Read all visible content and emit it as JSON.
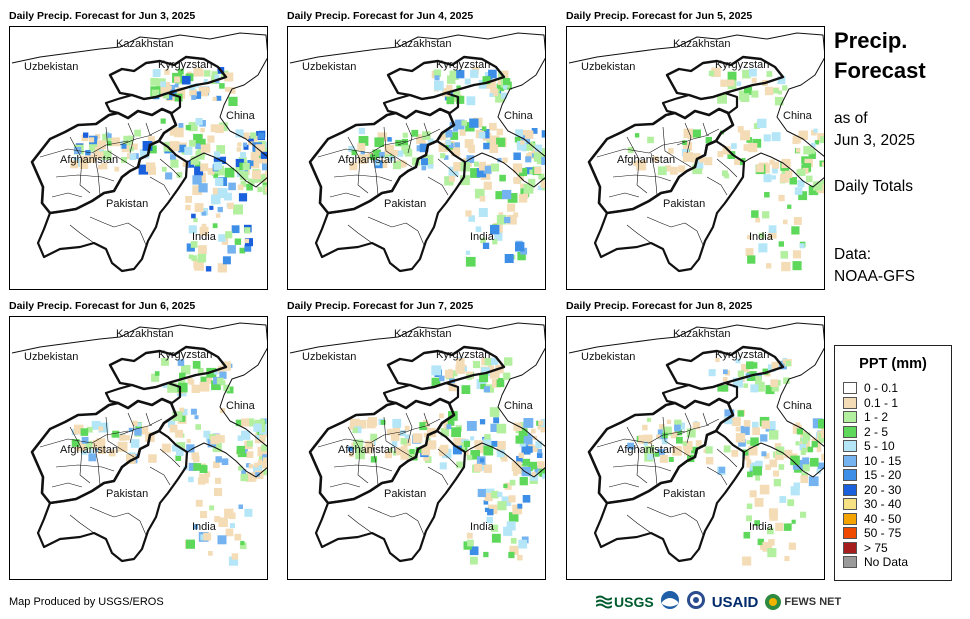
{
  "panels": [
    {
      "title": "Daily Precip. Forecast for Jun 3, 2025",
      "wet_level": 5
    },
    {
      "title": "Daily Precip. Forecast for Jun 4, 2025",
      "wet_level": 4
    },
    {
      "title": "Daily Precip. Forecast for Jun 5, 2025",
      "wet_level": 2
    },
    {
      "title": "Daily Precip. Forecast for Jun 6, 2025",
      "wet_level": 3
    },
    {
      "title": "Daily Precip. Forecast for Jun 7, 2025",
      "wet_level": 4
    },
    {
      "title": "Daily Precip. Forecast for Jun 8, 2025",
      "wet_level": 3
    }
  ],
  "country_labels": [
    "Kazakhstan",
    "Uzbekistan",
    "Kyrgyzstan",
    "China",
    "Afghanistan",
    "Pakistan",
    "India"
  ],
  "side": {
    "title_line1": "Precip.",
    "title_line2": "Forecast",
    "asof_line1": "as of",
    "asof_line2": "Jun 3, 2025",
    "totals": "Daily Totals",
    "data_line1": "Data:",
    "data_line2": "NOAA-GFS"
  },
  "legend": {
    "title": "PPT (mm)",
    "items": [
      {
        "label": "0 - 0.1",
        "color": "#ffffff"
      },
      {
        "label": "0.1 - 1",
        "color": "#f3dcb6"
      },
      {
        "label": "1 - 2",
        "color": "#b2ef9e"
      },
      {
        "label": "2 - 5",
        "color": "#5ed85a"
      },
      {
        "label": "5 - 10",
        "color": "#b4e6f7"
      },
      {
        "label": "10 - 15",
        "color": "#74b3ef"
      },
      {
        "label": "15 - 20",
        "color": "#3c8ee6"
      },
      {
        "label": "20 - 30",
        "color": "#1a5fdc"
      },
      {
        "label": "30 - 40",
        "color": "#f7e283"
      },
      {
        "label": "40 - 50",
        "color": "#f5a300"
      },
      {
        "label": "50 - 75",
        "color": "#f04a00"
      },
      {
        "label": "> 75",
        "color": "#a51d1d"
      },
      {
        "label": "No Data",
        "color": "#9a9a9a"
      }
    ]
  },
  "credit": "Map Produced by USGS/EROS",
  "logos": {
    "usgs": "USGS",
    "usaid": "USAID",
    "fews": "FEWS NET"
  }
}
